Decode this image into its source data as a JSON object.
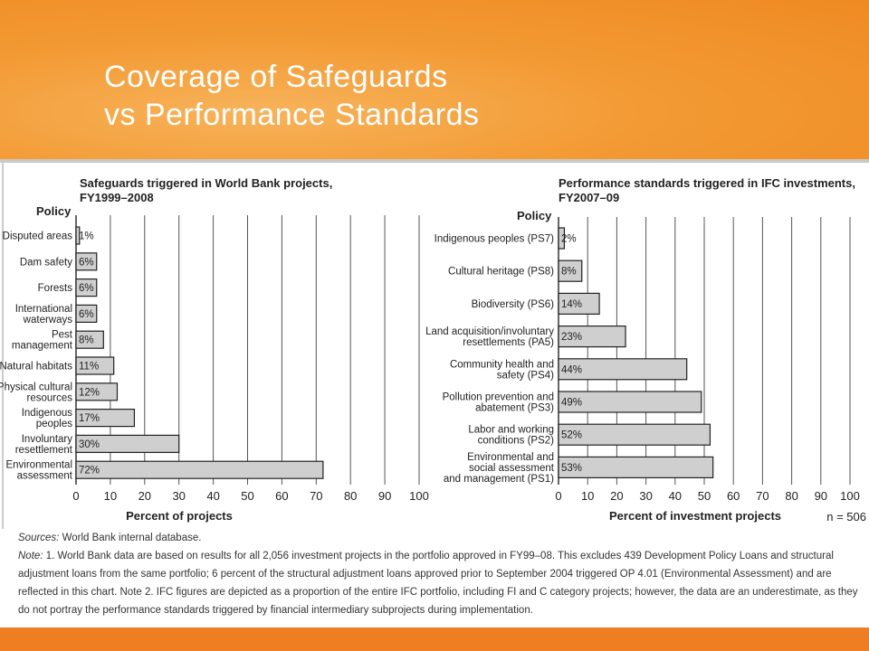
{
  "slide": {
    "title_line1": "Coverage of Safeguards",
    "title_line2": "vs Performance Standards"
  },
  "notes": {
    "sources_label": "Sources:",
    "sources_text": " World Bank internal database.",
    "note_label": "Note:",
    "note_text": " 1. World Bank data are based on results for all 2,056 investment projects in the portfolio approved in FY99–08. This excludes 439 Development Policy Loans and structural adjustment loans from the same portfolio; 6 percent of the structural adjustment loans approved prior to September 2004 triggered OP 4.01 (Environmental Assessment) and are reflected in this chart. Note 2. IFC figures are depicted as a proportion of the entire IFC portfolio, including FI and C category projects; however, the data are an underestimate, as they do not portray the performance standards triggered by financial intermediary subprojects during implementation."
  },
  "chart_data": [
    {
      "type": "bar",
      "orientation": "horizontal",
      "title": "Safeguards triggered in World Bank projects, FY1999–2008",
      "title_lines": [
        "Safeguards triggered in World Bank projects,",
        "FY1999–2008"
      ],
      "category_axis_title": "Policy",
      "xlabel": "Percent of projects",
      "xlim": [
        0,
        100
      ],
      "ticks": [
        0,
        10,
        20,
        30,
        40,
        50,
        60,
        70,
        80,
        90,
        100
      ],
      "grid": true,
      "categories": [
        [
          "Disputed areas"
        ],
        [
          "Dam safety"
        ],
        [
          "Forests"
        ],
        [
          "International",
          "waterways"
        ],
        [
          "Pest",
          "management"
        ],
        [
          "Natural habitats"
        ],
        [
          "Physical cultural",
          "resources"
        ],
        [
          "Indigenous",
          "peoples"
        ],
        [
          "Involuntary",
          "resettlement"
        ],
        [
          "Environmental",
          "assessment"
        ]
      ],
      "values": [
        1,
        6,
        6,
        6,
        8,
        11,
        12,
        17,
        30,
        72
      ],
      "value_labels": [
        "1%",
        "6%",
        "6%",
        "6%",
        "8%",
        "11%",
        "12%",
        "17%",
        "30%",
        "72%"
      ],
      "bar_color": "#cfcfcf"
    },
    {
      "type": "bar",
      "orientation": "horizontal",
      "title": "Performance standards triggered in IFC investments, FY2007–09",
      "title_lines": [
        "Performance standards triggered in IFC investments,",
        "FY2007–09"
      ],
      "category_axis_title": "Policy",
      "xlabel": "Percent of investment projects",
      "xlim": [
        0,
        100
      ],
      "ticks": [
        0,
        10,
        20,
        30,
        40,
        50,
        60,
        70,
        80,
        90,
        100
      ],
      "grid": true,
      "annotation": "n = 506",
      "categories": [
        [
          "Indigenous peoples (PS7)"
        ],
        [
          "Cultural heritage (PS8)"
        ],
        [
          "Biodiversity (PS6)"
        ],
        [
          "Land acquisition/involuntary",
          "resettlements (PA5)"
        ],
        [
          "Community health and",
          "safety (PS4)"
        ],
        [
          "Pollution prevention and",
          "abatement (PS3)"
        ],
        [
          "Labor and working",
          "conditions (PS2)"
        ],
        [
          "Environmental and",
          "social assessment",
          "and management (PS1)"
        ]
      ],
      "values": [
        2,
        8,
        14,
        23,
        44,
        49,
        52,
        53
      ],
      "value_labels": [
        "2%",
        "8%",
        "14%",
        "23%",
        "44%",
        "49%",
        "52%",
        "53%"
      ],
      "bar_color": "#cfcfcf"
    }
  ]
}
